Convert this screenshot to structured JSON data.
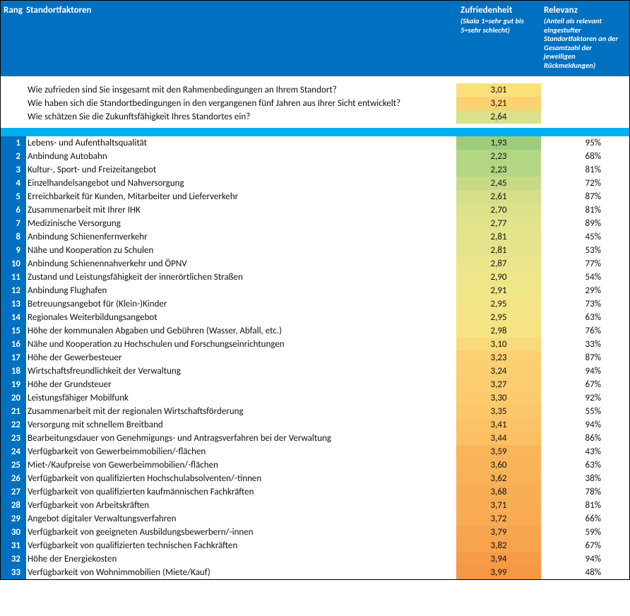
{
  "colors": {
    "header_bg": "#0070c0",
    "rank_bg": "#0070c0",
    "divider_bg": "#00b0f0",
    "text_white": "#ffffff"
  },
  "layout": {
    "total_width": 892,
    "col_rank_width": 36,
    "col_zuf_width": 120,
    "col_rel_width": 125
  },
  "header": {
    "rank_label": "Rang",
    "factor_label": "Standortfaktoren",
    "zuf_label": "Zufriedenheit",
    "zuf_sub": "(Skala 1=sehr gut bis 5=sehr schlecht)",
    "rel_label": "Relevanz",
    "rel_sub": "(Anteil als relevant eingestufter Standortfaktoren an der Gesamtzahl der jeweiligen Rückmeldungen)"
  },
  "intro": [
    {
      "text": "Wie zufrieden sind Sie insgesamt mit den Rahmenbedingungen an Ihrem Standort?",
      "value": "3,01",
      "cell_color": "#f9e07a"
    },
    {
      "text": "Wie haben sich die Standortbedingungen in den vergangenen fünf Jahren aus Ihrer Sicht entwickelt?",
      "value": "3,21",
      "cell_color": "#fbd172"
    },
    {
      "text": "Wie schätzen Sie die Zukunftsfähigkeit Ihres Standortes ein?",
      "value": "2,64",
      "cell_color": "#d9e18a"
    }
  ],
  "rows": [
    {
      "rank": "1",
      "factor": "Lebens- und Aufenthaltsqualität",
      "zuf": "1,93",
      "rel": "95%",
      "color": "#9bcd7e"
    },
    {
      "rank": "2",
      "factor": "Anbindung Autobahn",
      "zuf": "2,23",
      "rel": "68%",
      "color": "#b3d682"
    },
    {
      "rank": "3",
      "factor": "Kultur-, Sport- und Freizeitangebot",
      "zuf": "2,23",
      "rel": "81%",
      "color": "#b3d682"
    },
    {
      "rank": "4",
      "factor": "Einzelhandelsangebot und Nahversorgung",
      "zuf": "2,45",
      "rel": "72%",
      "color": "#c7db86"
    },
    {
      "rank": "5",
      "factor": "Erreichbarkeit für Kunden, Mitarbeiter und Lieferverkehr",
      "zuf": "2,61",
      "rel": "87%",
      "color": "#d4df89"
    },
    {
      "rank": "6",
      "factor": "Zusammenarbeit mit Ihrer IHK",
      "zuf": "2,70",
      "rel": "81%",
      "color": "#dce28b"
    },
    {
      "rank": "7",
      "factor": "Medizinische Versorgung",
      "zuf": "2,77",
      "rel": "89%",
      "color": "#e2e48c"
    },
    {
      "rank": "8",
      "factor": "Anbindung Schienenfernverkehr",
      "zuf": "2,81",
      "rel": "45%",
      "color": "#e5e48c"
    },
    {
      "rank": "9",
      "factor": "Nähe und Kooperation zu Schulen",
      "zuf": "2,81",
      "rel": "53%",
      "color": "#e5e48c"
    },
    {
      "rank": "10",
      "factor": "Anbindung Schienennahverkehr und ÖPNV",
      "zuf": "2,87",
      "rel": "77%",
      "color": "#ebe58b"
    },
    {
      "rank": "11",
      "factor": "Zustand und Leistungsfähigkeit der innerörtlichen Straßen",
      "zuf": "2,90",
      "rel": "54%",
      "color": "#eee689"
    },
    {
      "rank": "12",
      "factor": "Anbindung Flughafen",
      "zuf": "2,91",
      "rel": "29%",
      "color": "#efe688"
    },
    {
      "rank": "13",
      "factor": "Betreuungsangebot für (Klein-)Kinder",
      "zuf": "2,95",
      "rel": "73%",
      "color": "#f3e585"
    },
    {
      "rank": "14",
      "factor": "Regionales Weiterbildungsangebot",
      "zuf": "2,95",
      "rel": "63%",
      "color": "#f3e585"
    },
    {
      "rank": "15",
      "factor": "Höhe der kommunalen Abgaben und Gebühren (Wasser, Abfall, etc.)",
      "zuf": "2,98",
      "rel": "76%",
      "color": "#f6e382"
    },
    {
      "rank": "16",
      "factor": "Nähe und Kooperation zu Hochschulen und Forschungseinrichtungen",
      "zuf": "3,10",
      "rel": "33%",
      "color": "#f9da7a"
    },
    {
      "rank": "17",
      "factor": "Höhe der Gewerbesteuer",
      "zuf": "3,23",
      "rel": "87%",
      "color": "#fbd071"
    },
    {
      "rank": "18",
      "factor": "Wirtschaftsfreundlichkeit der Verwaltung",
      "zuf": "3,24",
      "rel": "94%",
      "color": "#fbcf70"
    },
    {
      "rank": "19",
      "factor": "Höhe der Grundsteuer",
      "zuf": "3,27",
      "rel": "67%",
      "color": "#fbcd6e"
    },
    {
      "rank": "20",
      "factor": "Leistungsfähiger Mobilfunk",
      "zuf": "3,30",
      "rel": "92%",
      "color": "#fbcb6c"
    },
    {
      "rank": "21",
      "factor": "Zusammenarbeit mit der regionalen Wirtschaftsförderung",
      "zuf": "3,35",
      "rel": "55%",
      "color": "#fbc769"
    },
    {
      "rank": "22",
      "factor": "Versorgung mit schnellem Breitband",
      "zuf": "3,41",
      "rel": "94%",
      "color": "#fbc365"
    },
    {
      "rank": "23",
      "factor": "Bearbeitungsdauer von Genehmigungs- und Antragsverfahren bei der Verwaltung",
      "zuf": "3,44",
      "rel": "86%",
      "color": "#fac063"
    },
    {
      "rank": "24",
      "factor": "Verfügbarkeit von Gewerbeimmobilien/-flächen",
      "zuf": "3,59",
      "rel": "43%",
      "color": "#f9b55a"
    },
    {
      "rank": "25",
      "factor": "Miet-/Kaufpreise von Gewerbeimmobilien/-flächen",
      "zuf": "3,60",
      "rel": "63%",
      "color": "#f9b459"
    },
    {
      "rank": "26",
      "factor": "Verfügbarkeit von qualifizierten Hochschulabsolventen/-tinnen",
      "zuf": "3,62",
      "rel": "38%",
      "color": "#f9b258"
    },
    {
      "rank": "27",
      "factor": "Verfügbarkeit von qualifizierten kaufmännischen Fachkräften",
      "zuf": "3,68",
      "rel": "78%",
      "color": "#f8ae55"
    },
    {
      "rank": "28",
      "factor": "Verfügbarkeit von Arbeitskräften",
      "zuf": "3,71",
      "rel": "81%",
      "color": "#f8ac53"
    },
    {
      "rank": "29",
      "factor": "Angebot digitaler Verwaltungsverfahren",
      "zuf": "3,72",
      "rel": "66%",
      "color": "#f8ab53"
    },
    {
      "rank": "30",
      "factor": "Verfügbarkeit von geeigneten Ausbildungsbewerbern/-innen",
      "zuf": "3,79",
      "rel": "59%",
      "color": "#f7a64f"
    },
    {
      "rank": "31",
      "factor": "Verfügbarkeit von qualifizierten technischen Fachkräften",
      "zuf": "3,82",
      "rel": "67%",
      "color": "#f7a44d"
    },
    {
      "rank": "32",
      "factor": "Höhe der Energiekosten",
      "zuf": "3,94",
      "rel": "94%",
      "color": "#f69b47"
    },
    {
      "rank": "33",
      "factor": "Verfügbarkeit von Wohnimmobilien (Miete/Kauf)",
      "zuf": "3,99",
      "rel": "48%",
      "color": "#f69744"
    }
  ]
}
